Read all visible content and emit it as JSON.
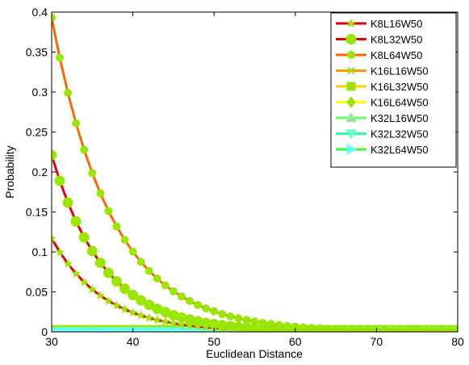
{
  "chart_data": {
    "type": "line",
    "title": "",
    "xlabel": "Euclidean Distance",
    "ylabel": "Probability",
    "xlim": [
      30,
      80
    ],
    "ylim": [
      0,
      0.4
    ],
    "xticks": [
      30,
      40,
      50,
      60,
      70,
      80
    ],
    "yticks": [
      0,
      0.05,
      0.1,
      0.15,
      0.2,
      0.25,
      0.3,
      0.35,
      0.4
    ],
    "xtick_labels": [
      "30",
      "40",
      "50",
      "60",
      "70",
      "80"
    ],
    "ytick_labels": [
      "0",
      "0.05",
      "0.1",
      "0.15",
      "0.2",
      "0.25",
      "0.3",
      "0.35",
      "0.4"
    ],
    "grid": false,
    "legend_position": "top-right",
    "x": [
      30,
      31,
      32,
      33,
      34,
      35,
      36,
      37,
      38,
      39,
      40,
      41,
      42,
      43,
      44,
      45,
      46,
      47,
      48,
      49,
      50,
      51,
      52,
      53,
      54,
      55,
      56,
      57,
      58,
      59,
      60,
      61,
      62,
      63,
      64,
      65,
      66,
      67,
      68,
      69,
      70,
      71,
      72,
      73,
      74,
      75,
      76,
      77,
      78,
      79,
      80
    ],
    "series": [
      {
        "name": "K8L16W50",
        "line_color": "#e60000",
        "marker_color": "#99e600",
        "marker": "star",
        "marker_size": 4,
        "values": [
          0.117,
          0.0999,
          0.0852,
          0.0728,
          0.0621,
          0.053,
          0.0453,
          0.0386,
          0.033,
          0.0282,
          0.024,
          0.0205,
          0.0175,
          0.015,
          0.0128,
          0.0109,
          0.0093,
          0.008,
          0.0068,
          0.0058,
          0.005,
          0.0042,
          0.0036,
          0.0031,
          0.0026,
          0.0023,
          0.0019,
          0.0017,
          0.0014,
          0.0012,
          0.001,
          0.0009,
          0.0008,
          0.0006,
          0.0005,
          0.0005,
          0.0004,
          0.0003,
          0.0003,
          0.0002,
          0.0002,
          0.0002,
          0.0002,
          0.0001,
          0.0001,
          0.0001,
          0.0001,
          0.0001,
          0.0001,
          0.0,
          0.0
        ]
      },
      {
        "name": "K8L32W50",
        "line_color": "#e60000",
        "marker_color": "#99e600",
        "marker": "circle",
        "marker_size": 6,
        "values": [
          0.221,
          0.1891,
          0.1617,
          0.1382,
          0.1182,
          0.1011,
          0.0864,
          0.0739,
          0.0632,
          0.054,
          0.0462,
          0.0395,
          0.0338,
          0.0289,
          0.0247,
          0.0211,
          0.0181,
          0.0155,
          0.0132,
          0.0113,
          0.0097,
          0.0083,
          0.0071,
          0.006,
          0.0052,
          0.0044,
          0.0038,
          0.0032,
          0.0028,
          0.0024,
          0.002,
          0.0017,
          0.0015,
          0.0013,
          0.0011,
          0.0009,
          0.0008,
          0.0007,
          0.0006,
          0.0005,
          0.0004,
          0.0004,
          0.0003,
          0.0003,
          0.0002,
          0.0002,
          0.0002,
          0.0001,
          0.0001,
          0.0001,
          0.0001
        ]
      },
      {
        "name": "K8L64W50",
        "line_color": "#ff6600",
        "marker_color": "#99e600",
        "marker": "circle",
        "marker_size": 4.5,
        "values": [
          0.393,
          0.3429,
          0.2991,
          0.261,
          0.2277,
          0.1987,
          0.1733,
          0.1512,
          0.1319,
          0.1151,
          0.1004,
          0.0876,
          0.0764,
          0.0667,
          0.0582,
          0.0508,
          0.0443,
          0.0386,
          0.0337,
          0.0294,
          0.0257,
          0.0224,
          0.0195,
          0.017,
          0.0149,
          0.013,
          0.0113,
          0.0099,
          0.0086,
          0.0075,
          0.0066,
          0.0057,
          0.005,
          0.0044,
          0.0038,
          0.0033,
          0.0029,
          0.0025,
          0.0022,
          0.0019,
          0.0017,
          0.0015,
          0.0013,
          0.0011,
          0.001,
          0.0009,
          0.0008,
          0.0007,
          0.0006,
          0.0005,
          0.0004
        ]
      },
      {
        "name": "K16L16W50",
        "line_color": "#ff9900",
        "marker_color": "#99e600",
        "marker": "x",
        "marker_size": 4,
        "values": [
          0.004,
          0.004,
          0.004,
          0.004,
          0.004,
          0.004,
          0.004,
          0.004,
          0.004,
          0.004,
          0.004,
          0.004,
          0.004,
          0.004,
          0.004,
          0.004,
          0.004,
          0.004,
          0.004,
          0.004,
          0.004,
          0.004,
          0.004,
          0.004,
          0.004,
          0.004,
          0.004,
          0.004,
          0.004,
          0.004,
          0.004,
          0.004,
          0.004,
          0.004,
          0.004,
          0.004,
          0.004,
          0.004,
          0.004,
          0.004,
          0.004,
          0.004,
          0.004,
          0.004,
          0.004,
          0.004,
          0.004,
          0.004,
          0.004,
          0.004,
          0.004
        ]
      },
      {
        "name": "K16L32W50",
        "line_color": "#ffcc00",
        "marker_color": "#99e600",
        "marker": "square",
        "marker_size": 5,
        "values": [
          0.003,
          0.003,
          0.003,
          0.003,
          0.003,
          0.003,
          0.003,
          0.003,
          0.003,
          0.003,
          0.003,
          0.003,
          0.003,
          0.003,
          0.003,
          0.003,
          0.003,
          0.003,
          0.003,
          0.003,
          0.003,
          0.003,
          0.003,
          0.003,
          0.003,
          0.003,
          0.003,
          0.003,
          0.003,
          0.003,
          0.003,
          0.003,
          0.003,
          0.003,
          0.003,
          0.003,
          0.003,
          0.003,
          0.003,
          0.003,
          0.003,
          0.003,
          0.003,
          0.003,
          0.003,
          0.003,
          0.003,
          0.003,
          0.003,
          0.003,
          0.003
        ]
      },
      {
        "name": "K16L64W50",
        "line_color": "#ffff00",
        "marker_color": "#99e600",
        "marker": "diamond",
        "marker_size": 5,
        "values": [
          0.002,
          0.002,
          0.002,
          0.002,
          0.002,
          0.002,
          0.002,
          0.002,
          0.002,
          0.002,
          0.002,
          0.002,
          0.002,
          0.002,
          0.002,
          0.002,
          0.002,
          0.002,
          0.002,
          0.002,
          0.002,
          0.002,
          0.002,
          0.002,
          0.002,
          0.002,
          0.002,
          0.002,
          0.002,
          0.002,
          0.002,
          0.002,
          0.002,
          0.002,
          0.002,
          0.002,
          0.002,
          0.002,
          0.002,
          0.002,
          0.002,
          0.002,
          0.002,
          0.002,
          0.002,
          0.002,
          0.002,
          0.002,
          0.002,
          0.002,
          0.002
        ]
      },
      {
        "name": "K32L16W50",
        "line_color": "#66ff66",
        "marker_color": "#99e6a0",
        "marker": "triangle-up",
        "marker_size": 6,
        "values": [
          0.001,
          0.001,
          0.001,
          0.001,
          0.001,
          0.001,
          0.001,
          0.001,
          0.001,
          0.001,
          0.001,
          0.001,
          0.001,
          0.001,
          0.001,
          0.001,
          0.001,
          0.001,
          0.001,
          0.001,
          0.001,
          0.001,
          0.001,
          0.001,
          0.001,
          0.001,
          0.001,
          0.001,
          0.001,
          0.001,
          0.001,
          0.001,
          0.001,
          0.001,
          0.001,
          0.001,
          0.001,
          0.001,
          0.001,
          0.001,
          0.001,
          0.001,
          0.001,
          0.001,
          0.001,
          0.001,
          0.001,
          0.001,
          0.001,
          0.001,
          0.001
        ]
      },
      {
        "name": "K32L32W50",
        "line_color": "#33ff99",
        "marker_color": "#66ffcc",
        "marker": "triangle-down",
        "marker_size": 6,
        "values": [
          0.0005,
          0.0005,
          0.0005,
          0.0005,
          0.0005,
          0.0005,
          0.0005,
          0.0005,
          0.0005,
          0.0005,
          0.0005,
          0.0005,
          0.0005,
          0.0005,
          0.0005,
          0.0005,
          0.0005,
          0.0005,
          0.0005,
          0.0005,
          0.0005,
          0.0005,
          0.0005,
          0.0005,
          0.0005,
          0.0005,
          0.0005,
          0.0005,
          0.0005,
          0.0005,
          0.0005,
          0.0005,
          0.0005,
          0.0005,
          0.0005,
          0.0005,
          0.0005,
          0.0005,
          0.0005,
          0.0005,
          0.0005,
          0.0005,
          0.0005,
          0.0005,
          0.0005,
          0.0005,
          0.0005,
          0.0005,
          0.0005,
          0.0005,
          0.0005
        ]
      },
      {
        "name": "K32L64W50",
        "line_color": "#33ff33",
        "marker_color": "#66ffff",
        "marker": "triangle-right",
        "marker_size": 6,
        "values": [
          0.0002,
          0.0002,
          0.0002,
          0.0002,
          0.0002,
          0.0002,
          0.0002,
          0.0002,
          0.0002,
          0.0002,
          0.0002,
          0.0002,
          0.0002,
          0.0002,
          0.0002,
          0.0002,
          0.0002,
          0.0002,
          0.0002,
          0.0002,
          0.0002,
          0.0002,
          0.0002,
          0.0002,
          0.0002,
          0.0002,
          0.0002,
          0.0002,
          0.0002,
          0.0002,
          0.0002,
          0.0002,
          0.0002,
          0.0002,
          0.0002,
          0.0002,
          0.0002,
          0.0002,
          0.0002,
          0.0002,
          0.0002,
          0.0002,
          0.0002,
          0.0002,
          0.0002,
          0.0002,
          0.0002,
          0.0002,
          0.0002,
          0.0002,
          0.0002
        ]
      }
    ]
  }
}
